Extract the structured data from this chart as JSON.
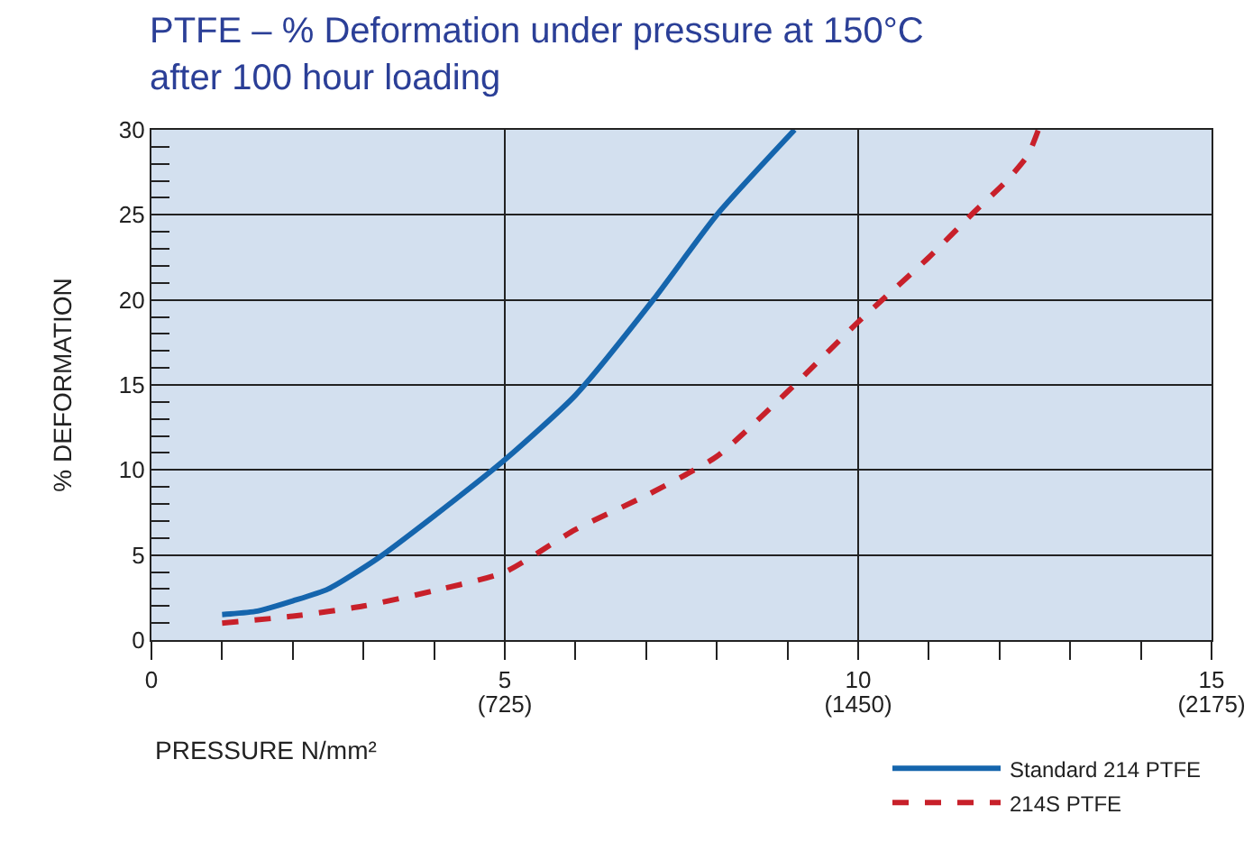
{
  "chart_data": {
    "type": "line",
    "title": "PTFE – % Deformation under pressure at 150°C\nafter 100 hour loading",
    "xlabel": "PRESSURE N/mm²",
    "ylabel": "% DEFORMATION",
    "xlim": [
      0,
      15
    ],
    "xticks": [
      0,
      5,
      10,
      15
    ],
    "x2lim": [
      0,
      2175
    ],
    "x2ticks": [
      {
        "value": 725,
        "label": "(725)"
      },
      {
        "value": 1450,
        "label": "(1450)"
      },
      {
        "value": 2175,
        "label": "(2175)"
      }
    ],
    "ylim": [
      0,
      30
    ],
    "yticks": [
      0,
      5,
      10,
      15,
      20,
      25,
      30
    ],
    "grid": true,
    "legend": "bottom right",
    "series": [
      {
        "name": "Standard 214 PTFE",
        "color": "#1565ad",
        "line_style": "solid",
        "x": [
          1,
          1.5,
          2,
          2.5,
          3.2,
          4,
          5,
          6,
          7.1,
          8,
          9.1
        ],
        "values": [
          1.5,
          1.7,
          2.3,
          3.0,
          4.8,
          7.3,
          10.6,
          14.4,
          20,
          25,
          30
        ]
      },
      {
        "name": "214S PTFE",
        "color": "#c8202a",
        "line_style": "dashed",
        "x": [
          1,
          2,
          3,
          4,
          5,
          6,
          7,
          8,
          9,
          10,
          11,
          11.6,
          12.1,
          12.4,
          12.55
        ],
        "values": [
          1.0,
          1.4,
          2.0,
          2.9,
          4.0,
          6.5,
          8.5,
          10.8,
          14.6,
          18.7,
          22.5,
          25,
          27,
          28.5,
          30
        ]
      }
    ]
  }
}
